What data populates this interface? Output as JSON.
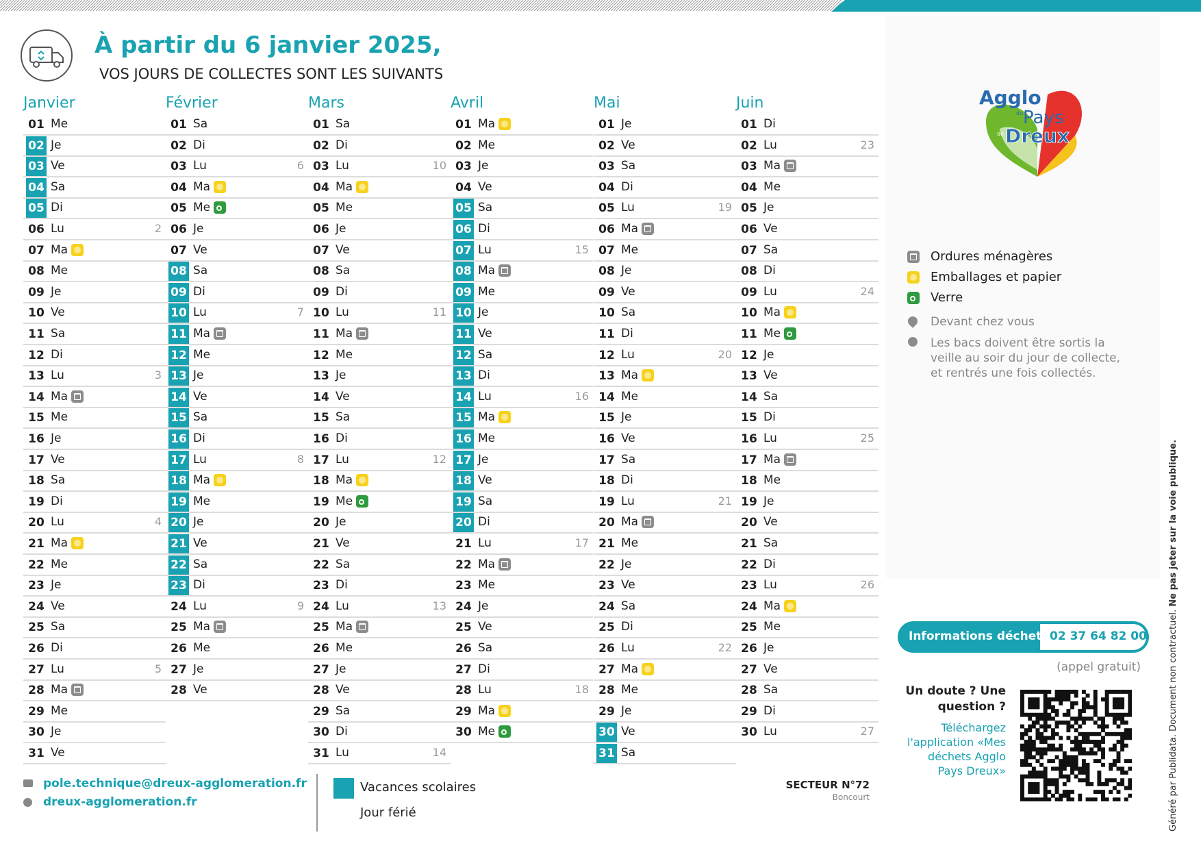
{
  "header": {
    "title": "À partir du 6 janvier 2025,",
    "subtitle": "VOS JOURS DE COLLECTES SONT LES SUIVANTS"
  },
  "months": [
    {
      "name": "Janvier",
      "days": [
        {
          "n": "01",
          "d": "Me"
        },
        {
          "n": "02",
          "d": "Je",
          "v": true
        },
        {
          "n": "03",
          "d": "Ve",
          "v": true
        },
        {
          "n": "04",
          "d": "Sa",
          "v": true
        },
        {
          "n": "05",
          "d": "Di",
          "v": true
        },
        {
          "n": "06",
          "d": "Lu",
          "wk": 2
        },
        {
          "n": "07",
          "d": "Ma",
          "c": 1
        },
        {
          "n": "08",
          "d": "Me"
        },
        {
          "n": "09",
          "d": "Je"
        },
        {
          "n": "10",
          "d": "Ve"
        },
        {
          "n": "11",
          "d": "Sa"
        },
        {
          "n": "12",
          "d": "Di"
        },
        {
          "n": "13",
          "d": "Lu",
          "wk": 3
        },
        {
          "n": "14",
          "d": "Ma",
          "c": 0
        },
        {
          "n": "15",
          "d": "Me"
        },
        {
          "n": "16",
          "d": "Je"
        },
        {
          "n": "17",
          "d": "Ve"
        },
        {
          "n": "18",
          "d": "Sa"
        },
        {
          "n": "19",
          "d": "Di"
        },
        {
          "n": "20",
          "d": "Lu",
          "wk": 4
        },
        {
          "n": "21",
          "d": "Ma",
          "c": 1
        },
        {
          "n": "22",
          "d": "Me"
        },
        {
          "n": "23",
          "d": "Je"
        },
        {
          "n": "24",
          "d": "Ve"
        },
        {
          "n": "25",
          "d": "Sa"
        },
        {
          "n": "26",
          "d": "Di"
        },
        {
          "n": "27",
          "d": "Lu",
          "wk": 5
        },
        {
          "n": "28",
          "d": "Ma",
          "c": 0
        },
        {
          "n": "29",
          "d": "Me"
        },
        {
          "n": "30",
          "d": "Je"
        },
        {
          "n": "31",
          "d": "Ve"
        }
      ]
    },
    {
      "name": "Février",
      "days": [
        {
          "n": "01",
          "d": "Sa"
        },
        {
          "n": "02",
          "d": "Di"
        },
        {
          "n": "03",
          "d": "Lu",
          "wk": 6
        },
        {
          "n": "04",
          "d": "Ma",
          "c": 1
        },
        {
          "n": "05",
          "d": "Me",
          "c": 2
        },
        {
          "n": "06",
          "d": "Je"
        },
        {
          "n": "07",
          "d": "Ve"
        },
        {
          "n": "08",
          "d": "Sa",
          "v": true
        },
        {
          "n": "09",
          "d": "Di",
          "v": true
        },
        {
          "n": "10",
          "d": "Lu",
          "wk": 7,
          "v": true
        },
        {
          "n": "11",
          "d": "Ma",
          "c": 0,
          "v": true
        },
        {
          "n": "12",
          "d": "Me",
          "v": true
        },
        {
          "n": "13",
          "d": "Je",
          "v": true
        },
        {
          "n": "14",
          "d": "Ve",
          "v": true
        },
        {
          "n": "15",
          "d": "Sa",
          "v": true
        },
        {
          "n": "16",
          "d": "Di",
          "v": true
        },
        {
          "n": "17",
          "d": "Lu",
          "wk": 8,
          "v": true
        },
        {
          "n": "18",
          "d": "Ma",
          "c": 1,
          "v": true
        },
        {
          "n": "19",
          "d": "Me",
          "v": true
        },
        {
          "n": "20",
          "d": "Je",
          "v": true
        },
        {
          "n": "21",
          "d": "Ve",
          "v": true
        },
        {
          "n": "22",
          "d": "Sa",
          "v": true
        },
        {
          "n": "23",
          "d": "Di",
          "v": true
        },
        {
          "n": "24",
          "d": "Lu",
          "wk": 9
        },
        {
          "n": "25",
          "d": "Ma",
          "c": 0
        },
        {
          "n": "26",
          "d": "Me"
        },
        {
          "n": "27",
          "d": "Je"
        },
        {
          "n": "28",
          "d": "Ve"
        }
      ]
    },
    {
      "name": "Mars",
      "days": [
        {
          "n": "01",
          "d": "Sa"
        },
        {
          "n": "02",
          "d": "Di"
        },
        {
          "n": "03",
          "d": "Lu",
          "wk": 10
        },
        {
          "n": "04",
          "d": "Ma",
          "c": 1
        },
        {
          "n": "05",
          "d": "Me"
        },
        {
          "n": "06",
          "d": "Je"
        },
        {
          "n": "07",
          "d": "Ve"
        },
        {
          "n": "08",
          "d": "Sa"
        },
        {
          "n": "09",
          "d": "Di"
        },
        {
          "n": "10",
          "d": "Lu",
          "wk": 11
        },
        {
          "n": "11",
          "d": "Ma",
          "c": 0
        },
        {
          "n": "12",
          "d": "Me"
        },
        {
          "n": "13",
          "d": "Je"
        },
        {
          "n": "14",
          "d": "Ve"
        },
        {
          "n": "15",
          "d": "Sa"
        },
        {
          "n": "16",
          "d": "Di"
        },
        {
          "n": "17",
          "d": "Lu",
          "wk": 12
        },
        {
          "n": "18",
          "d": "Ma",
          "c": 1
        },
        {
          "n": "19",
          "d": "Me",
          "c": 2
        },
        {
          "n": "20",
          "d": "Je"
        },
        {
          "n": "21",
          "d": "Ve"
        },
        {
          "n": "22",
          "d": "Sa"
        },
        {
          "n": "23",
          "d": "Di"
        },
        {
          "n": "24",
          "d": "Lu",
          "wk": 13
        },
        {
          "n": "25",
          "d": "Ma",
          "c": 0
        },
        {
          "n": "26",
          "d": "Me"
        },
        {
          "n": "27",
          "d": "Je"
        },
        {
          "n": "28",
          "d": "Ve"
        },
        {
          "n": "29",
          "d": "Sa"
        },
        {
          "n": "30",
          "d": "Di"
        },
        {
          "n": "31",
          "d": "Lu",
          "wk": 14
        }
      ]
    },
    {
      "name": "Avril",
      "days": [
        {
          "n": "01",
          "d": "Ma",
          "c": 1
        },
        {
          "n": "02",
          "d": "Me"
        },
        {
          "n": "03",
          "d": "Je"
        },
        {
          "n": "04",
          "d": "Ve"
        },
        {
          "n": "05",
          "d": "Sa",
          "v": true
        },
        {
          "n": "06",
          "d": "Di",
          "v": true
        },
        {
          "n": "07",
          "d": "Lu",
          "wk": 15,
          "v": true
        },
        {
          "n": "08",
          "d": "Ma",
          "c": 0,
          "v": true
        },
        {
          "n": "09",
          "d": "Me",
          "v": true
        },
        {
          "n": "10",
          "d": "Je",
          "v": true
        },
        {
          "n": "11",
          "d": "Ve",
          "v": true
        },
        {
          "n": "12",
          "d": "Sa",
          "v": true
        },
        {
          "n": "13",
          "d": "Di",
          "v": true
        },
        {
          "n": "14",
          "d": "Lu",
          "wk": 16,
          "v": true
        },
        {
          "n": "15",
          "d": "Ma",
          "c": 1,
          "v": true
        },
        {
          "n": "16",
          "d": "Me",
          "v": true
        },
        {
          "n": "17",
          "d": "Je",
          "v": true
        },
        {
          "n": "18",
          "d": "Ve",
          "v": true
        },
        {
          "n": "19",
          "d": "Sa",
          "v": true
        },
        {
          "n": "20",
          "d": "Di",
          "v": true
        },
        {
          "n": "21",
          "d": "Lu",
          "wk": 17
        },
        {
          "n": "22",
          "d": "Ma",
          "c": 0
        },
        {
          "n": "23",
          "d": "Me"
        },
        {
          "n": "24",
          "d": "Je"
        },
        {
          "n": "25",
          "d": "Ve"
        },
        {
          "n": "26",
          "d": "Sa"
        },
        {
          "n": "27",
          "d": "Di"
        },
        {
          "n": "28",
          "d": "Lu",
          "wk": 18
        },
        {
          "n": "29",
          "d": "Ma",
          "c": 1
        },
        {
          "n": "30",
          "d": "Me",
          "c": 2
        }
      ]
    },
    {
      "name": "Mai",
      "days": [
        {
          "n": "01",
          "d": "Je"
        },
        {
          "n": "02",
          "d": "Ve"
        },
        {
          "n": "03",
          "d": "Sa"
        },
        {
          "n": "04",
          "d": "Di"
        },
        {
          "n": "05",
          "d": "Lu",
          "wk": 19
        },
        {
          "n": "06",
          "d": "Ma",
          "c": 0
        },
        {
          "n": "07",
          "d": "Me"
        },
        {
          "n": "08",
          "d": "Je"
        },
        {
          "n": "09",
          "d": "Ve"
        },
        {
          "n": "10",
          "d": "Sa"
        },
        {
          "n": "11",
          "d": "Di"
        },
        {
          "n": "12",
          "d": "Lu",
          "wk": 20
        },
        {
          "n": "13",
          "d": "Ma",
          "c": 1
        },
        {
          "n": "14",
          "d": "Me"
        },
        {
          "n": "15",
          "d": "Je"
        },
        {
          "n": "16",
          "d": "Ve"
        },
        {
          "n": "17",
          "d": "Sa"
        },
        {
          "n": "18",
          "d": "Di"
        },
        {
          "n": "19",
          "d": "Lu",
          "wk": 21
        },
        {
          "n": "20",
          "d": "Ma",
          "c": 0
        },
        {
          "n": "21",
          "d": "Me"
        },
        {
          "n": "22",
          "d": "Je"
        },
        {
          "n": "23",
          "d": "Ve"
        },
        {
          "n": "24",
          "d": "Sa"
        },
        {
          "n": "25",
          "d": "Di"
        },
        {
          "n": "26",
          "d": "Lu",
          "wk": 22
        },
        {
          "n": "27",
          "d": "Ma",
          "c": 1
        },
        {
          "n": "28",
          "d": "Me"
        },
        {
          "n": "29",
          "d": "Je"
        },
        {
          "n": "30",
          "d": "Ve",
          "v": true
        },
        {
          "n": "31",
          "d": "Sa",
          "v": true
        }
      ]
    },
    {
      "name": "Juin",
      "days": [
        {
          "n": "01",
          "d": "Di"
        },
        {
          "n": "02",
          "d": "Lu",
          "wk": 23
        },
        {
          "n": "03",
          "d": "Ma",
          "c": 0
        },
        {
          "n": "04",
          "d": "Me"
        },
        {
          "n": "05",
          "d": "Je"
        },
        {
          "n": "06",
          "d": "Ve"
        },
        {
          "n": "07",
          "d": "Sa"
        },
        {
          "n": "08",
          "d": "Di"
        },
        {
          "n": "09",
          "d": "Lu",
          "wk": 24
        },
        {
          "n": "10",
          "d": "Ma",
          "c": 1
        },
        {
          "n": "11",
          "d": "Me",
          "c": 2
        },
        {
          "n": "12",
          "d": "Je"
        },
        {
          "n": "13",
          "d": "Ve"
        },
        {
          "n": "14",
          "d": "Sa"
        },
        {
          "n": "15",
          "d": "Di"
        },
        {
          "n": "16",
          "d": "Lu",
          "wk": 25
        },
        {
          "n": "17",
          "d": "Ma",
          "c": 0
        },
        {
          "n": "18",
          "d": "Me"
        },
        {
          "n": "19",
          "d": "Je"
        },
        {
          "n": "20",
          "d": "Ve"
        },
        {
          "n": "21",
          "d": "Sa"
        },
        {
          "n": "22",
          "d": "Di"
        },
        {
          "n": "23",
          "d": "Lu",
          "wk": 26
        },
        {
          "n": "24",
          "d": "Ma",
          "c": 1
        },
        {
          "n": "25",
          "d": "Me"
        },
        {
          "n": "26",
          "d": "Je"
        },
        {
          "n": "27",
          "d": "Ve"
        },
        {
          "n": "28",
          "d": "Sa"
        },
        {
          "n": "29",
          "d": "Di"
        },
        {
          "n": "30",
          "d": "Lu",
          "wk": 27
        }
      ]
    }
  ],
  "logo": {
    "l1": "Agglo",
    "du": "du",
    "l2": "Pays",
    "de": "de",
    "l3": "Dreux"
  },
  "legend": {
    "items": [
      "Ordures ménagères",
      "Emballages et papier",
      "Verre"
    ],
    "notes": [
      "Devant chez vous",
      "Les bacs doivent être sortis la",
      "veille au soir du jour de collecte,",
      "et rentrés une fois collectés."
    ]
  },
  "contact": {
    "label": "Informations déchets",
    "phone": "02 37 64 82 00",
    "note": "(appel gratuit)",
    "question": [
      "Un doute ? Une",
      "question ?"
    ],
    "app": [
      "Téléchargez",
      "l'application «Mes",
      "déchets Agglo",
      "Pays Dreux»"
    ]
  },
  "footer": {
    "email": "pole.technique@dreux-agglomeration.fr",
    "site": "dreux-agglomeration.fr",
    "vacances": "Vacances scolaires",
    "ferie": "Jour férié",
    "secteur": "SECTEUR N°72",
    "commune": "Boncourt",
    "side": "Généré par Publidata. Document non contractuel.",
    "side_bold": "Ne pas jeter sur la voie publique."
  }
}
